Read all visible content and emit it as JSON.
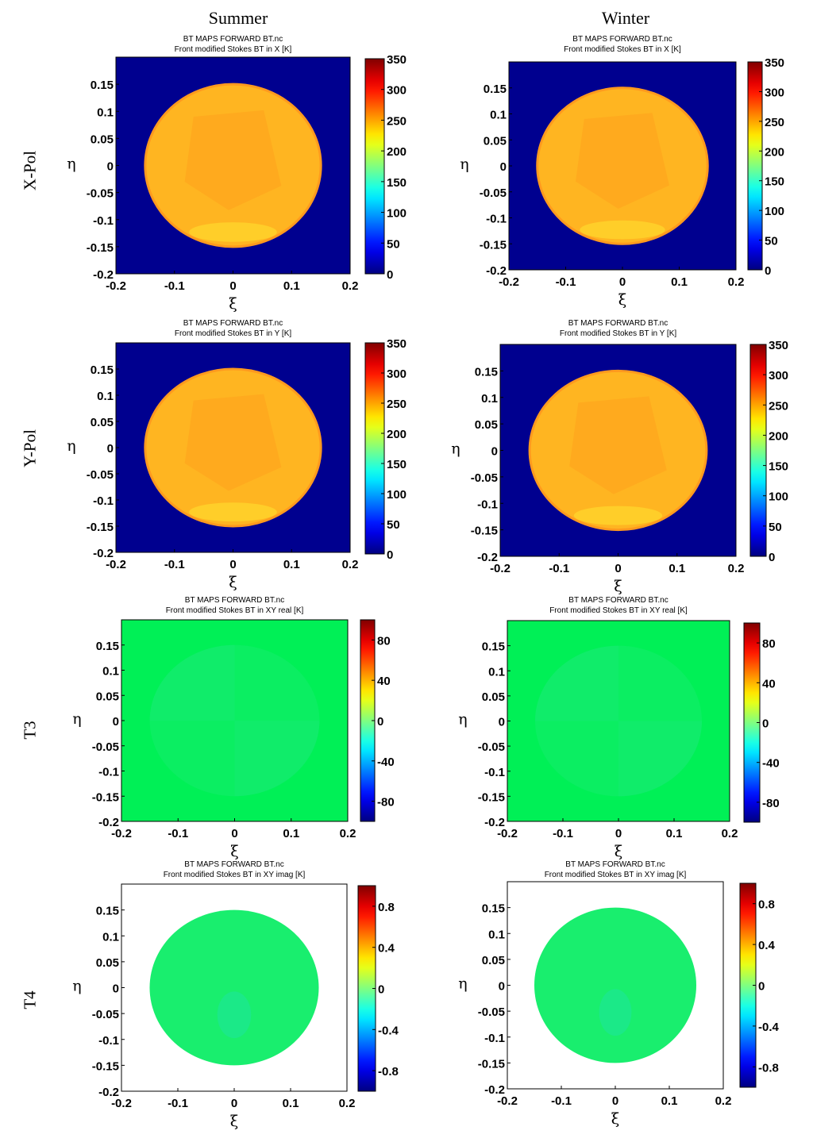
{
  "columns": [
    "Summer",
    "Winter"
  ],
  "rows": [
    "X-Pol",
    "Y-Pol",
    "T3",
    "T4"
  ],
  "colors": {
    "background_disk_blue": "#00008F",
    "t3_green": "#00F056",
    "t4_green": "#19EE6E",
    "frame": "#000000"
  },
  "chart_data": [
    {
      "type": "heatmap",
      "column": "Summer",
      "row": "X-Pol",
      "title": "BT MAPS FORWARD BT.nc",
      "subtitle": "Front modified Stokes BT in X [K]",
      "xlabel": "ξ",
      "ylabel": "η",
      "xlim": [
        -0.2,
        0.2
      ],
      "ylim": [
        -0.2,
        0.2
      ],
      "xticks": [
        "-0.2",
        "-0.1",
        "0",
        "0.1",
        "0.2"
      ],
      "yticks": [
        "-0.2",
        "-0.15",
        "-0.1",
        "-0.05",
        "0",
        "0.05",
        "0.1",
        "0.15"
      ],
      "clim": [
        0,
        350
      ],
      "cticks": [
        "0",
        "50",
        "100",
        "150",
        "200",
        "250",
        "300",
        "350"
      ],
      "disk_radius": 0.15,
      "disk_value_K": 240,
      "outside_value_K": 0
    },
    {
      "type": "heatmap",
      "column": "Winter",
      "row": "X-Pol",
      "title": "BT MAPS FORWARD BT.nc",
      "subtitle": "Front modified Stokes BT in X [K]",
      "xlabel": "ξ",
      "ylabel": "η",
      "xlim": [
        -0.2,
        0.2
      ],
      "ylim": [
        -0.2,
        0.2
      ],
      "xticks": [
        "-0.2",
        "-0.1",
        "0",
        "0.1",
        "0.2"
      ],
      "yticks": [
        "-0.2",
        "-0.15",
        "-0.1",
        "-0.05",
        "0",
        "0.05",
        "0.1",
        "0.15"
      ],
      "clim": [
        0,
        350
      ],
      "cticks": [
        "0",
        "50",
        "100",
        "150",
        "200",
        "250",
        "300",
        "350"
      ],
      "disk_radius": 0.15,
      "disk_value_K": 245,
      "outside_value_K": 0
    },
    {
      "type": "heatmap",
      "column": "Summer",
      "row": "Y-Pol",
      "title": "BT MAPS FORWARD BT.nc",
      "subtitle": "Front modified Stokes BT in Y [K]",
      "xlabel": "ξ",
      "ylabel": "η",
      "xlim": [
        -0.2,
        0.2
      ],
      "ylim": [
        -0.2,
        0.2
      ],
      "xticks": [
        "-0.2",
        "-0.1",
        "0",
        "0.1",
        "0.2"
      ],
      "yticks": [
        "-0.2",
        "-0.15",
        "-0.1",
        "-0.05",
        "0",
        "0.05",
        "0.1",
        "0.15"
      ],
      "clim": [
        0,
        350
      ],
      "cticks": [
        "0",
        "50",
        "100",
        "150",
        "200",
        "250",
        "300",
        "350"
      ],
      "disk_radius": 0.15,
      "disk_value_K": 240,
      "outside_value_K": 0
    },
    {
      "type": "heatmap",
      "column": "Winter",
      "row": "Y-Pol",
      "title": "BT MAPS FORWARD BT.nc",
      "subtitle": "Front modified Stokes BT in Y [K]",
      "xlabel": "ξ",
      "ylabel": "η",
      "xlim": [
        -0.2,
        0.2
      ],
      "ylim": [
        -0.2,
        0.2
      ],
      "xticks": [
        "-0.2",
        "-0.1",
        "0",
        "0.1",
        "0.2"
      ],
      "yticks": [
        "-0.2",
        "-0.15",
        "-0.1",
        "-0.05",
        "0",
        "0.05",
        "0.1",
        "0.15"
      ],
      "clim": [
        0,
        350
      ],
      "cticks": [
        "0",
        "50",
        "100",
        "150",
        "200",
        "250",
        "300",
        "350"
      ],
      "disk_radius": 0.15,
      "disk_value_K": 245,
      "outside_value_K": 0
    },
    {
      "type": "heatmap",
      "column": "Summer",
      "row": "T3",
      "title": "BT MAPS FORWARD BT.nc",
      "subtitle": "Front modified Stokes BT in XY real [K]",
      "xlabel": "ξ",
      "ylabel": "η",
      "xlim": [
        -0.2,
        0.2
      ],
      "ylim": [
        -0.2,
        0.2
      ],
      "xticks": [
        "-0.2",
        "-0.1",
        "0",
        "0.1",
        "0.2"
      ],
      "yticks": [
        "-0.2",
        "-0.15",
        "-0.1",
        "-0.05",
        "0",
        "0.05",
        "0.1",
        "0.15"
      ],
      "clim": [
        -100,
        100
      ],
      "cticks": [
        "-80",
        "-40",
        "0",
        "40",
        "80"
      ],
      "disk_radius": 0.15,
      "disk_value_K": 0,
      "outside_value_K": 0
    },
    {
      "type": "heatmap",
      "column": "Winter",
      "row": "T3",
      "title": "BT MAPS FORWARD BT.nc",
      "subtitle": "Front modified Stokes BT in XY real [K]",
      "xlabel": "ξ",
      "ylabel": "η",
      "xlim": [
        -0.2,
        0.2
      ],
      "ylim": [
        -0.2,
        0.2
      ],
      "xticks": [
        "-0.2",
        "-0.1",
        "0",
        "0.1",
        "0.2"
      ],
      "yticks": [
        "-0.2",
        "-0.15",
        "-0.1",
        "-0.05",
        "0",
        "0.05",
        "0.1",
        "0.15"
      ],
      "clim": [
        -100,
        100
      ],
      "cticks": [
        "-80",
        "-40",
        "0",
        "40",
        "80"
      ],
      "disk_radius": 0.15,
      "disk_value_K": 0,
      "outside_value_K": 0
    },
    {
      "type": "heatmap",
      "column": "Summer",
      "row": "T4",
      "title": "BT MAPS FORWARD BT.nc",
      "subtitle": "Front modified Stokes BT in XY imag [K]",
      "xlabel": "ξ",
      "ylabel": "η",
      "xlim": [
        -0.2,
        0.2
      ],
      "ylim": [
        -0.2,
        0.2
      ],
      "xticks": [
        "-0.2",
        "-0.1",
        "0",
        "0.1",
        "0.2"
      ],
      "yticks": [
        "-0.2",
        "-0.15",
        "-0.1",
        "-0.05",
        "0",
        "0.05",
        "0.1",
        "0.15"
      ],
      "clim": [
        -1,
        1
      ],
      "cticks": [
        "-0.8",
        "-0.4",
        "0",
        "0.4",
        "0.8"
      ],
      "disk_radius": 0.15,
      "disk_value_K": 0,
      "outside_value_K": null
    },
    {
      "type": "heatmap",
      "column": "Winter",
      "row": "T4",
      "title": "BT MAPS FORWARD BT.nc",
      "subtitle": "Front modified Stokes BT in XY imag [K]",
      "xlabel": "ξ",
      "ylabel": "η",
      "xlim": [
        -0.2,
        0.2
      ],
      "ylim": [
        -0.2,
        0.2
      ],
      "xticks": [
        "-0.2",
        "-0.1",
        "0",
        "0.1",
        "0.2"
      ],
      "yticks": [
        "-0.2",
        "-0.15",
        "-0.1",
        "-0.05",
        "0",
        "0.05",
        "0.1",
        "0.15"
      ],
      "clim": [
        -1,
        1
      ],
      "cticks": [
        "-0.8",
        "-0.4",
        "0",
        "0.4",
        "0.8"
      ],
      "disk_radius": 0.15,
      "disk_value_K": 0,
      "outside_value_K": null
    }
  ]
}
